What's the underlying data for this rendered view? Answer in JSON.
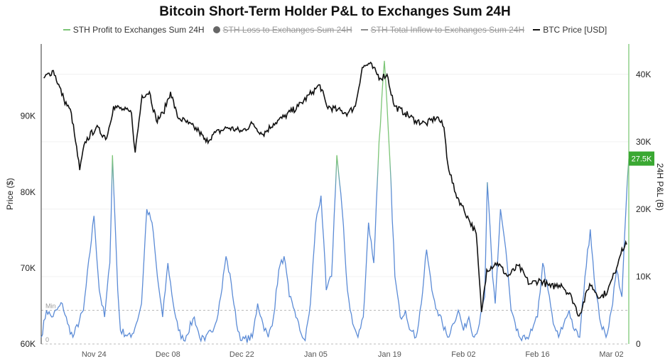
{
  "chart_data": {
    "type": "line",
    "title": "Bitcoin Short-Term Holder P&L to Exchanges Sum 24H",
    "legend": [
      {
        "label": "STH Profit to Exchanges Sum 24H",
        "color": "#7cc576",
        "visible": true,
        "marker": "line"
      },
      {
        "label": "STH Loss to Exchanges Sum 24H",
        "color": "#666666",
        "visible": false,
        "marker": "dot"
      },
      {
        "label": "STH Total Inflow to Exchanges Sum 24H",
        "color": "#8a8a8a",
        "visible": false,
        "marker": "line"
      },
      {
        "label": "BTC Price [USD]",
        "color": "#111111",
        "visible": true,
        "marker": "line"
      }
    ],
    "legend_position": "top-center",
    "ylabel_left": "Price ($)",
    "ylabel_right": "24H P&L (B)",
    "ylim_left": [
      60000,
      99500
    ],
    "ylim_right": [
      0,
      44500
    ],
    "xlim_days": [
      0,
      111.3
    ],
    "x_start_date": "Nov 14",
    "left_ticks": [
      {
        "v": 60000,
        "label": "60K"
      },
      {
        "v": 70000,
        "label": "70K"
      },
      {
        "v": 80000,
        "label": "80K"
      },
      {
        "v": 90000,
        "label": "90K"
      }
    ],
    "right_ticks": [
      {
        "v": 0,
        "label": "0"
      },
      {
        "v": 10000,
        "label": "10K"
      },
      {
        "v": 20000,
        "label": "20K"
      },
      {
        "v": 30000,
        "label": "30K"
      },
      {
        "v": 40000,
        "label": "40K"
      }
    ],
    "x_ticks": [
      {
        "day": 10,
        "label": "Nov 24"
      },
      {
        "day": 24,
        "label": "Dec 08"
      },
      {
        "day": 38,
        "label": "Dec 22"
      },
      {
        "day": 52,
        "label": "Jan 05"
      },
      {
        "day": 66,
        "label": "Jan 19"
      },
      {
        "day": 80,
        "label": "Feb 02"
      },
      {
        "day": 94,
        "label": "Feb 16"
      },
      {
        "day": 108,
        "label": "Mar 02"
      }
    ],
    "reference_lines": [
      {
        "v": 5000,
        "label": "Min"
      },
      {
        "v": 0,
        "label": "0"
      }
    ],
    "last_value_label": "27.5K",
    "colors": {
      "profit_low": "#5b8bd6",
      "profit_high": "#7cc576",
      "price": "#111111",
      "badge": "#3aa832",
      "right_axis": "#8fd08a"
    },
    "series": [
      {
        "name": "BTC Price [USD]",
        "axis": "left",
        "points": [
          [
            0.5,
            95000
          ],
          [
            2.3,
            96000
          ],
          [
            4.3,
            92200
          ],
          [
            5.7,
            90400
          ],
          [
            6.3,
            87600
          ],
          [
            7.3,
            82900
          ],
          [
            8.3,
            86600
          ],
          [
            10.4,
            88500
          ],
          [
            12.4,
            87100
          ],
          [
            13.7,
            91300
          ],
          [
            15.7,
            90800
          ],
          [
            17.1,
            90400
          ],
          [
            17.8,
            85200
          ],
          [
            19.1,
            92700
          ],
          [
            20.5,
            93200
          ],
          [
            21.8,
            89400
          ],
          [
            23.1,
            90400
          ],
          [
            24.5,
            93200
          ],
          [
            25.8,
            89900
          ],
          [
            27.9,
            89000
          ],
          [
            29.9,
            88000
          ],
          [
            31.2,
            86600
          ],
          [
            32.6,
            87600
          ],
          [
            35.3,
            88500
          ],
          [
            38,
            88000
          ],
          [
            40,
            89000
          ],
          [
            42,
            87600
          ],
          [
            44,
            89000
          ],
          [
            46,
            89900
          ],
          [
            48.7,
            91300
          ],
          [
            51.4,
            93200
          ],
          [
            52.8,
            94100
          ],
          [
            54.1,
            91300
          ],
          [
            56.1,
            90800
          ],
          [
            58.1,
            90400
          ],
          [
            59.5,
            91300
          ],
          [
            60.8,
            96400
          ],
          [
            62.2,
            96900
          ],
          [
            64.2,
            95000
          ],
          [
            65.5,
            95500
          ],
          [
            66.9,
            91300
          ],
          [
            68.9,
            90400
          ],
          [
            70.9,
            89400
          ],
          [
            72.9,
            89000
          ],
          [
            75,
            89900
          ],
          [
            76.3,
            88500
          ],
          [
            77,
            83800
          ],
          [
            78.3,
            80100
          ],
          [
            79.7,
            78200
          ],
          [
            81,
            76400
          ],
          [
            82.4,
            74500
          ],
          [
            83.4,
            64200
          ],
          [
            84.4,
            69800
          ],
          [
            86.4,
            70700
          ],
          [
            88.4,
            68900
          ],
          [
            90.4,
            70300
          ],
          [
            92.5,
            67900
          ],
          [
            94.5,
            68400
          ],
          [
            96.5,
            67500
          ],
          [
            98.5,
            67900
          ],
          [
            100.5,
            66100
          ],
          [
            101.9,
            63700
          ],
          [
            103.9,
            67900
          ],
          [
            105.9,
            66100
          ],
          [
            107.3,
            67000
          ],
          [
            108.6,
            69300
          ],
          [
            110,
            72600
          ],
          [
            110.9,
            73100
          ]
        ]
      },
      {
        "name": "STH Profit to Exchanges Sum 24H",
        "axis": "right",
        "points": [
          [
            0,
            1000
          ],
          [
            1,
            5000
          ],
          [
            2,
            4000
          ],
          [
            4,
            6000
          ],
          [
            5,
            3000
          ],
          [
            6,
            1000
          ],
          [
            8,
            5000
          ],
          [
            10,
            19000
          ],
          [
            11,
            8000
          ],
          [
            12,
            4000
          ],
          [
            13,
            12000
          ],
          [
            13.5,
            28000
          ],
          [
            14.5,
            8000
          ],
          [
            15,
            2000
          ],
          [
            17,
            1000
          ],
          [
            18,
            3000
          ],
          [
            19,
            6000
          ],
          [
            20,
            20000
          ],
          [
            21,
            18000
          ],
          [
            22,
            10000
          ],
          [
            23,
            4000
          ],
          [
            24,
            12000
          ],
          [
            25,
            6000
          ],
          [
            26,
            2000
          ],
          [
            27,
            500
          ],
          [
            29,
            4000
          ],
          [
            30,
            1000
          ],
          [
            31,
            500
          ],
          [
            33,
            3000
          ],
          [
            34,
            7000
          ],
          [
            35,
            13000
          ],
          [
            36,
            9000
          ],
          [
            37,
            3000
          ],
          [
            38,
            500
          ],
          [
            40,
            1000
          ],
          [
            41,
            6000
          ],
          [
            42,
            3000
          ],
          [
            43,
            1000
          ],
          [
            44,
            4000
          ],
          [
            45,
            11000
          ],
          [
            46,
            13000
          ],
          [
            47,
            7000
          ],
          [
            48,
            5000
          ],
          [
            49,
            2000
          ],
          [
            50,
            500
          ],
          [
            51,
            6000
          ],
          [
            52,
            18000
          ],
          [
            53,
            22000
          ],
          [
            54,
            8000
          ],
          [
            55,
            10000
          ],
          [
            56,
            28000
          ],
          [
            57,
            20000
          ],
          [
            58,
            8000
          ],
          [
            59,
            3000
          ],
          [
            60,
            1000
          ],
          [
            61,
            4000
          ],
          [
            62,
            18000
          ],
          [
            63,
            12000
          ],
          [
            64,
            30000
          ],
          [
            65,
            42000
          ],
          [
            66,
            28000
          ],
          [
            67,
            10000
          ],
          [
            68,
            4000
          ],
          [
            69,
            5000
          ],
          [
            70,
            2000
          ],
          [
            71,
            1000
          ],
          [
            72,
            6000
          ],
          [
            73,
            14000
          ],
          [
            74,
            8000
          ],
          [
            75,
            5000
          ],
          [
            76,
            3000
          ],
          [
            77,
            1000
          ],
          [
            78,
            3000
          ],
          [
            79,
            5000
          ],
          [
            80,
            2000
          ],
          [
            81,
            4000
          ],
          [
            82,
            1000
          ],
          [
            83,
            3000
          ],
          [
            84,
            7000
          ],
          [
            84.5,
            24000
          ],
          [
            85.5,
            10000
          ],
          [
            86,
            6000
          ],
          [
            87,
            20000
          ],
          [
            88,
            14000
          ],
          [
            89,
            5000
          ],
          [
            90,
            2000
          ],
          [
            91,
            500
          ],
          [
            92,
            1000
          ],
          [
            93,
            2000
          ],
          [
            94,
            4000
          ],
          [
            95,
            12000
          ],
          [
            96,
            8000
          ],
          [
            97,
            3000
          ],
          [
            98,
            1000
          ],
          [
            99,
            3000
          ],
          [
            100,
            5000
          ],
          [
            101,
            2000
          ],
          [
            102,
            1000
          ],
          [
            103,
            10000
          ],
          [
            104,
            17000
          ],
          [
            105,
            8000
          ],
          [
            106,
            3000
          ],
          [
            107,
            1000
          ],
          [
            108,
            5000
          ],
          [
            109,
            11000
          ],
          [
            110,
            7000
          ],
          [
            111,
            24000
          ],
          [
            111.3,
            27500
          ]
        ]
      }
    ]
  }
}
